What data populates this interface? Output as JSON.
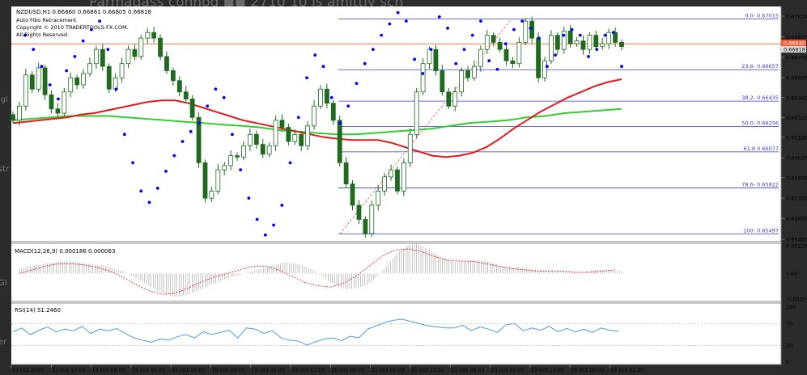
{
  "window": {
    "symbol_line": "NZDUSD,H1  0.66860 0.66861 0.66805 0.66818",
    "indicator_name": "Auto Fibo Retracement",
    "copyright": "Copyright © 2010 TRADERTOOLS-FX.COM.",
    "rights": "All Rights Reserved.",
    "background_text": "Parmadass connod   ◼◼   2710   10 is amittly sch",
    "left_fragments": [
      "igl",
      "str",
      "Gl",
      "er"
    ]
  },
  "colors": {
    "background": "#ffffff",
    "up_candle": "#1e6b1e",
    "down_candle": "#1e6b1e",
    "sar": "#0000ff",
    "ma_red": "#e31a1c",
    "ma_green": "#33cc33",
    "fibo": "#3a3ad6",
    "fibo_diagonal": "#e06060",
    "current_price_line": "#ff5a36",
    "macd_hist": "#a0a0a0",
    "macd_signal": "#e31a1c",
    "rsi": "#4a9be0"
  },
  "chart_data": [
    {
      "type": "candlestick",
      "title": "NZDUSD,H1",
      "ylim": [
        0.6546,
        0.67035
      ],
      "y_ticks": [
        "0.67035",
        "0.66890",
        "0.66745",
        "0.66600",
        "0.66460",
        "0.66320",
        "0.66180",
        "0.66035",
        "0.65895",
        "0.65750",
        "0.65605",
        "0.65460"
      ],
      "x_ticks": [
        "13 Oct 2020",
        "13 Oct 17:00",
        "14 Oct 09:00",
        "15 Oct 01:00",
        "15 Oct 17:00",
        "16 Oct 09:00",
        "19 Oct 01:00",
        "19 Oct 17:00",
        "20 Oct 09:00",
        "21 Oct 01:00",
        "21 Oct 17:00",
        "22 Oct 09:00",
        "23 Oct 01:00",
        "23 Oct 17:00",
        "26 Oct 09:00",
        "27 Oct 01:00"
      ],
      "current_price": "0.66818",
      "ask_price": "0.66840",
      "fibo_levels": [
        {
          "label": "0.0- 0.67015",
          "value": 0.67015
        },
        {
          "label": "23.6- 0.66657",
          "value": 0.66657
        },
        {
          "label": "38.2- 0.66435",
          "value": 0.66435
        },
        {
          "label": "50.0- 0.66256",
          "value": 0.66256
        },
        {
          "label": "61.8 0.66077",
          "value": 0.66077
        },
        {
          "label": "78.6- 0.65822",
          "value": 0.65822
        },
        {
          "label": "100- 0.65497",
          "value": 0.65497
        }
      ],
      "closes": [
        0.663,
        0.664,
        0.6662,
        0.6652,
        0.6667,
        0.6648,
        0.6638,
        0.6635,
        0.665,
        0.666,
        0.6655,
        0.6663,
        0.667,
        0.668,
        0.6668,
        0.6652,
        0.666,
        0.667,
        0.668,
        0.6675,
        0.6688,
        0.6692,
        0.6688,
        0.6675,
        0.6665,
        0.6658,
        0.665,
        0.6645,
        0.6632,
        0.66,
        0.6575,
        0.658,
        0.6595,
        0.6598,
        0.6605,
        0.6604,
        0.6612,
        0.662,
        0.6613,
        0.6606,
        0.6612,
        0.663,
        0.6625,
        0.6615,
        0.662,
        0.6612,
        0.6626,
        0.664,
        0.6652,
        0.6642,
        0.663,
        0.66,
        0.6585,
        0.657,
        0.656,
        0.655,
        0.657,
        0.658,
        0.659,
        0.6595,
        0.658,
        0.66,
        0.662,
        0.665,
        0.667,
        0.668,
        0.6665,
        0.665,
        0.664,
        0.665,
        0.6665,
        0.666,
        0.6668,
        0.668,
        0.669,
        0.6685,
        0.668,
        0.6672,
        0.667,
        0.6685,
        0.67,
        0.6688,
        0.666,
        0.6672,
        0.669,
        0.668,
        0.6693,
        0.6684,
        0.6686,
        0.668,
        0.669,
        0.6682,
        0.6684,
        0.6692,
        0.6685,
        0.6682
      ],
      "ma_red": [
        0.6628,
        0.6629,
        0.663,
        0.6631,
        0.6632,
        0.6634,
        0.6635,
        0.6637,
        0.6639,
        0.6641,
        0.6643,
        0.6644,
        0.6644,
        0.6642,
        0.6639,
        0.6636,
        0.6633,
        0.663,
        0.6628,
        0.6626,
        0.6624,
        0.6622,
        0.662,
        0.6618,
        0.6617,
        0.6616,
        0.6616,
        0.6616,
        0.6614,
        0.6611,
        0.6608,
        0.6605,
        0.6604,
        0.6605,
        0.6607,
        0.6611,
        0.6617,
        0.6624,
        0.663,
        0.6636,
        0.6641,
        0.6646,
        0.665,
        0.6654,
        0.6657,
        0.6659
      ],
      "ma_green": [
        0.663,
        0.6631,
        0.6632,
        0.6633,
        0.6633,
        0.6633,
        0.6632,
        0.6631,
        0.663,
        0.6629,
        0.6628,
        0.6627,
        0.6626,
        0.6625,
        0.6623,
        0.6622,
        0.6621,
        0.662,
        0.662,
        0.6621,
        0.6622,
        0.6623,
        0.6624,
        0.6626,
        0.6628,
        0.6629,
        0.663,
        0.6632,
        0.6633,
        0.6635,
        0.6636,
        0.6637,
        0.6638
      ],
      "sar": [
        0.669,
        0.668,
        0.6668,
        0.6655,
        0.6645,
        0.6665,
        0.6675,
        0.6686,
        0.6694,
        0.67,
        0.668,
        0.6652,
        0.662,
        0.66,
        0.658,
        0.6572,
        0.6582,
        0.6594,
        0.6605,
        0.6615,
        0.6622,
        0.6628,
        0.664,
        0.6652,
        0.6646,
        0.662,
        0.6595,
        0.6575,
        0.656,
        0.6549,
        0.6556,
        0.657,
        0.66,
        0.6632,
        0.666,
        0.6676,
        0.6668,
        0.6646,
        0.6628,
        0.664,
        0.6656,
        0.667,
        0.668,
        0.669,
        0.6698,
        0.6706,
        0.67,
        0.6673,
        0.6663,
        0.668,
        0.6703,
        0.6695,
        0.667,
        0.668,
        0.669,
        0.67,
        0.6672,
        0.6666,
        0.6684,
        0.6694,
        0.67,
        0.6695,
        0.6688,
        0.6668,
        0.6676,
        0.669,
        0.6694,
        0.669,
        0.6675,
        0.668,
        0.669,
        0.6692,
        0.6668
      ]
    },
    {
      "type": "bar",
      "title": "MACD(12,26,9) 0.000186 0.000063",
      "ylim": [
        -0.002075,
        0.002263
      ],
      "y_ticks": [
        "0.002263",
        "0.00",
        "-0.002075"
      ],
      "hist": [
        0.0004,
        0.0006,
        0.0007,
        0.0008,
        0.0009,
        0.001,
        0.001,
        0.0009,
        0.0008,
        0.0007,
        0.0006,
        0.0004,
        0.0002,
        -0.0002,
        -0.0006,
        -0.001,
        -0.0014,
        -0.0017,
        -0.0019,
        -0.0018,
        -0.0016,
        -0.0013,
        -0.001,
        -0.0007,
        -0.0004,
        -0.0002,
        0.0,
        0.0002,
        0.0004,
        0.0006,
        0.0008,
        0.0009,
        0.0008,
        0.0006,
        0.0003,
        -0.0002,
        -0.0007,
        -0.0011,
        -0.0013,
        -0.0012,
        -0.001,
        -0.0006,
        0.0002,
        0.001,
        0.0018,
        0.0023,
        0.0024,
        0.0021,
        0.0017,
        0.0013,
        0.001,
        0.0009,
        0.001,
        0.0011,
        0.001,
        0.0008,
        0.0006,
        0.0005,
        0.0005,
        0.0004,
        0.0003,
        0.0003,
        0.0002,
        0.0002,
        0.0001,
        0.0001,
        0.0002,
        0.0003,
        0.0003,
        0.0002
      ],
      "signal": [
        0.0,
        0.0003,
        0.0006,
        0.0008,
        0.0008,
        0.0007,
        0.0005,
        0.0002,
        -0.0003,
        -0.0009,
        -0.0014,
        -0.0017,
        -0.0016,
        -0.0012,
        -0.0007,
        -0.0003,
        0.0,
        0.0003,
        0.0006,
        0.0006,
        0.0003,
        -0.0002,
        -0.0007,
        -0.001,
        -0.0011,
        -0.0008,
        -0.0002,
        0.0006,
        0.0014,
        0.0019,
        0.002,
        0.0018,
        0.0014,
        0.0011,
        0.001,
        0.001,
        0.0008,
        0.0006,
        0.0004,
        0.0003,
        0.0002,
        0.0002,
        0.0002,
        0.0001,
        0.0001,
        0.0002,
        0.0003
      ]
    },
    {
      "type": "line",
      "title": "RSI(14) 51.2460",
      "ylim": [
        0,
        100
      ],
      "y_ticks": [
        "100",
        "70",
        "30",
        "0"
      ],
      "values": [
        55,
        62,
        50,
        58,
        64,
        55,
        60,
        57,
        65,
        52,
        60,
        57,
        61,
        52,
        44,
        40,
        36,
        42,
        40,
        46,
        50,
        44,
        55,
        50,
        54,
        58,
        44,
        62,
        60,
        52,
        57,
        44,
        40,
        38,
        31,
        37,
        42,
        44,
        39,
        47,
        44,
        60,
        66,
        72,
        76,
        78,
        74,
        70,
        66,
        64,
        62,
        62,
        67,
        57,
        64,
        60,
        54,
        68,
        70,
        57,
        62,
        58,
        65,
        55,
        61,
        55,
        60,
        54,
        62,
        58,
        56
      ]
    }
  ]
}
